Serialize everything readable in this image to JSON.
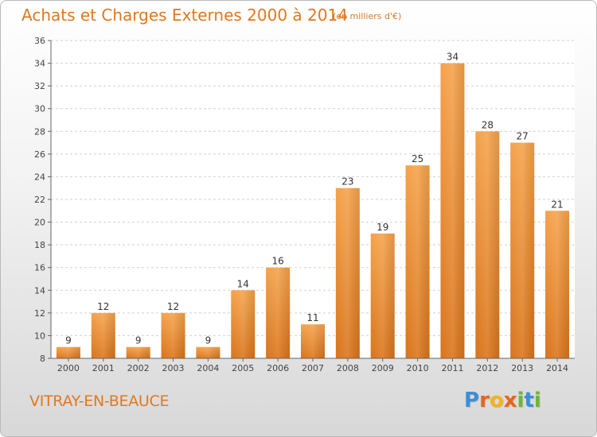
{
  "chart_data": {
    "type": "bar",
    "title": "Achats et Charges Externes 2000 à 2014",
    "subtitle": "(en milliers d'€)",
    "categories": [
      "2000",
      "2001",
      "2002",
      "2003",
      "2004",
      "2005",
      "2006",
      "2007",
      "2008",
      "2009",
      "2010",
      "2011",
      "2012",
      "2013",
      "2014"
    ],
    "values": [
      9,
      12,
      9,
      12,
      9,
      14,
      16,
      11,
      23,
      19,
      25,
      34,
      28,
      27,
      21
    ],
    "ylim": [
      8,
      36
    ],
    "yticks": [
      8,
      10,
      12,
      14,
      16,
      18,
      20,
      22,
      24,
      26,
      28,
      30,
      32,
      34,
      36
    ],
    "grid": "horizontal dashed",
    "bar_color": "#f0922e"
  },
  "location": "VITRAY-EN-BEAUCE",
  "logo": {
    "letters": [
      {
        "ch": "P",
        "color": "#3a8fd8"
      },
      {
        "ch": "r",
        "color": "#e8641e"
      },
      {
        "ch": "o",
        "color": "#f2b51a"
      },
      {
        "ch": "x",
        "color": "#e8641e"
      },
      {
        "ch": "i",
        "color": "#6fb62c"
      },
      {
        "ch": "t",
        "color": "#3a8fd8"
      },
      {
        "ch": "i",
        "color": "#6fb62c"
      }
    ]
  }
}
